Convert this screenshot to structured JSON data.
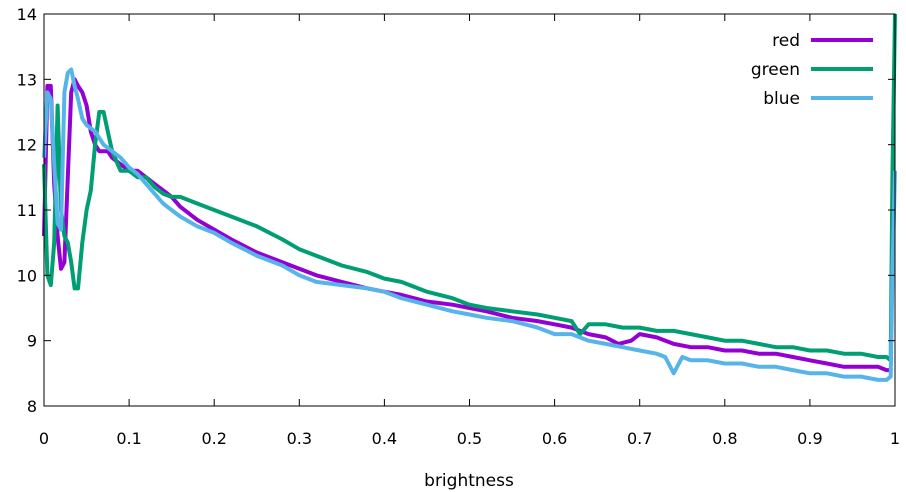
{
  "chart_data": {
    "type": "line",
    "title": "",
    "xlabel": "brightness",
    "ylabel": "",
    "xlim": [
      0,
      1
    ],
    "ylim": [
      8,
      14
    ],
    "xticks": [
      "0",
      "0.1",
      "0.2",
      "0.3",
      "0.4",
      "0.5",
      "0.6",
      "0.7",
      "0.8",
      "0.9",
      "1"
    ],
    "yticks": [
      "8",
      "9",
      "10",
      "11",
      "12",
      "13",
      "14"
    ],
    "grid": false,
    "legend_position": "top-right",
    "series": [
      {
        "name": "red",
        "color": "#9400d3",
        "x": [
          0,
          0.004,
          0.008,
          0.012,
          0.016,
          0.02,
          0.024,
          0.028,
          0.032,
          0.036,
          0.04,
          0.045,
          0.05,
          0.055,
          0.06,
          0.065,
          0.07,
          0.075,
          0.08,
          0.09,
          0.1,
          0.11,
          0.12,
          0.13,
          0.14,
          0.15,
          0.16,
          0.18,
          0.2,
          0.22,
          0.25,
          0.28,
          0.3,
          0.32,
          0.35,
          0.38,
          0.4,
          0.42,
          0.45,
          0.48,
          0.5,
          0.52,
          0.55,
          0.58,
          0.6,
          0.62,
          0.64,
          0.66,
          0.675,
          0.69,
          0.7,
          0.72,
          0.74,
          0.76,
          0.78,
          0.8,
          0.82,
          0.84,
          0.86,
          0.88,
          0.9,
          0.92,
          0.94,
          0.96,
          0.98,
          0.99,
          0.995
        ],
        "y": [
          10.6,
          12.9,
          12.9,
          11.4,
          10.6,
          10.1,
          10.2,
          11.5,
          12.8,
          13.0,
          12.9,
          12.8,
          12.6,
          12.2,
          12.0,
          11.9,
          11.9,
          11.9,
          11.8,
          11.7,
          11.6,
          11.6,
          11.5,
          11.4,
          11.3,
          11.2,
          11.05,
          10.85,
          10.7,
          10.55,
          10.35,
          10.2,
          10.1,
          10.0,
          9.9,
          9.8,
          9.75,
          9.7,
          9.6,
          9.55,
          9.5,
          9.45,
          9.35,
          9.3,
          9.25,
          9.2,
          9.1,
          9.05,
          8.95,
          9.0,
          9.1,
          9.05,
          8.95,
          8.9,
          8.9,
          8.85,
          8.85,
          8.8,
          8.8,
          8.75,
          8.7,
          8.65,
          8.6,
          8.6,
          8.6,
          8.55,
          8.55
        ]
      },
      {
        "name": "green",
        "color": "#009e73",
        "x": [
          0,
          0.004,
          0.008,
          0.012,
          0.016,
          0.02,
          0.024,
          0.028,
          0.032,
          0.036,
          0.04,
          0.045,
          0.05,
          0.055,
          0.06,
          0.065,
          0.07,
          0.075,
          0.08,
          0.09,
          0.1,
          0.11,
          0.12,
          0.13,
          0.14,
          0.15,
          0.16,
          0.18,
          0.2,
          0.22,
          0.25,
          0.28,
          0.3,
          0.32,
          0.35,
          0.38,
          0.4,
          0.42,
          0.45,
          0.48,
          0.5,
          0.52,
          0.55,
          0.58,
          0.6,
          0.62,
          0.63,
          0.64,
          0.66,
          0.68,
          0.7,
          0.72,
          0.74,
          0.76,
          0.78,
          0.8,
          0.82,
          0.84,
          0.86,
          0.88,
          0.9,
          0.92,
          0.94,
          0.96,
          0.98,
          0.99,
          0.995,
          0.997,
          1.0
        ],
        "y": [
          11.7,
          10.0,
          9.85,
          10.5,
          12.6,
          11.0,
          10.6,
          10.5,
          10.2,
          9.8,
          9.8,
          10.5,
          11.0,
          11.3,
          12.0,
          12.5,
          12.5,
          12.2,
          11.9,
          11.6,
          11.6,
          11.5,
          11.5,
          11.35,
          11.25,
          11.2,
          11.2,
          11.1,
          11.0,
          10.9,
          10.75,
          10.55,
          10.4,
          10.3,
          10.15,
          10.05,
          9.95,
          9.9,
          9.75,
          9.65,
          9.55,
          9.5,
          9.45,
          9.4,
          9.35,
          9.3,
          9.1,
          9.25,
          9.25,
          9.2,
          9.2,
          9.15,
          9.15,
          9.1,
          9.05,
          9.0,
          9.0,
          8.95,
          8.9,
          8.9,
          8.85,
          8.85,
          8.8,
          8.8,
          8.75,
          8.75,
          8.7,
          11.5,
          14.0
        ]
      },
      {
        "name": "blue",
        "color": "#56b4e9",
        "x": [
          0,
          0.004,
          0.008,
          0.012,
          0.016,
          0.02,
          0.024,
          0.028,
          0.032,
          0.036,
          0.04,
          0.045,
          0.05,
          0.055,
          0.06,
          0.065,
          0.07,
          0.075,
          0.08,
          0.09,
          0.1,
          0.11,
          0.12,
          0.13,
          0.14,
          0.15,
          0.16,
          0.18,
          0.2,
          0.22,
          0.25,
          0.28,
          0.3,
          0.32,
          0.35,
          0.38,
          0.4,
          0.42,
          0.45,
          0.48,
          0.5,
          0.52,
          0.55,
          0.58,
          0.6,
          0.62,
          0.64,
          0.66,
          0.68,
          0.7,
          0.72,
          0.73,
          0.74,
          0.75,
          0.76,
          0.78,
          0.8,
          0.82,
          0.84,
          0.86,
          0.88,
          0.9,
          0.92,
          0.94,
          0.96,
          0.98,
          0.99,
          0.995,
          0.997,
          1.0
        ],
        "y": [
          11.8,
          12.8,
          12.7,
          11.7,
          10.8,
          10.7,
          12.8,
          13.1,
          13.15,
          12.9,
          12.7,
          12.4,
          12.3,
          12.25,
          12.2,
          12.1,
          12.0,
          11.95,
          11.9,
          11.8,
          11.65,
          11.55,
          11.4,
          11.25,
          11.1,
          11.0,
          10.9,
          10.75,
          10.65,
          10.5,
          10.3,
          10.15,
          10.0,
          9.9,
          9.85,
          9.8,
          9.75,
          9.65,
          9.55,
          9.45,
          9.4,
          9.35,
          9.3,
          9.2,
          9.1,
          9.1,
          9.0,
          8.95,
          8.9,
          8.85,
          8.8,
          8.75,
          8.5,
          8.75,
          8.7,
          8.7,
          8.65,
          8.65,
          8.6,
          8.6,
          8.55,
          8.5,
          8.5,
          8.45,
          8.45,
          8.4,
          8.4,
          8.45,
          10.0,
          11.6
        ]
      }
    ]
  }
}
